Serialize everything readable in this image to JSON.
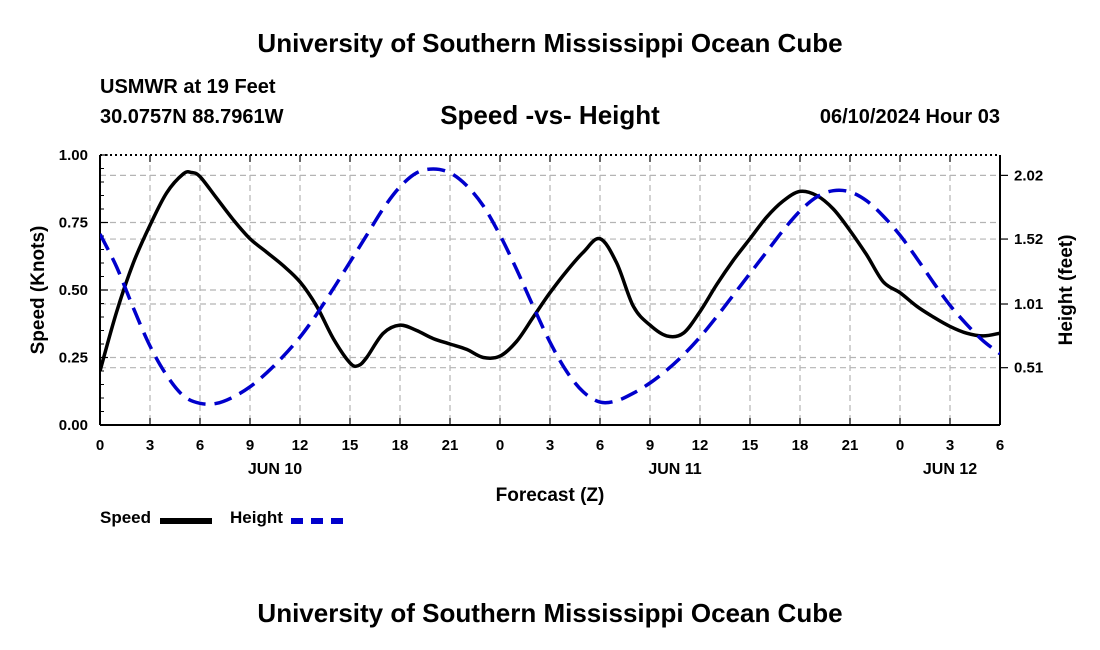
{
  "header": {
    "title": "University of Southern Mississippi Ocean Cube",
    "station": "USMWR at 19 Feet",
    "coordinates": "30.0757N  88.7961W",
    "subtitle": "Speed -vs- Height",
    "datetime": "06/10/2024 Hour 03"
  },
  "footer": {
    "title": "University of Southern Mississippi Ocean Cube"
  },
  "legend": {
    "speed_label": "Speed",
    "height_label": "Height"
  },
  "colors": {
    "speed": "#000000",
    "height": "#0000cc",
    "grid": "#b4b4b4"
  },
  "chart_data": {
    "type": "line",
    "title": "Speed -vs- Height",
    "xlabel": "Forecast (Z)",
    "ylabel": "Speed (Knots)",
    "y2label": "Height (feet)",
    "x_hours_range": [
      0,
      54
    ],
    "x_tick_labels": [
      "0",
      "3",
      "6",
      "9",
      "12",
      "15",
      "18",
      "21",
      "0",
      "3",
      "6",
      "9",
      "12",
      "15",
      "18",
      "21",
      "0",
      "3",
      "6"
    ],
    "date_labels": [
      {
        "hour": 10.5,
        "label": "JUN 10"
      },
      {
        "hour": 34.5,
        "label": "JUN 11"
      },
      {
        "hour": 51,
        "label": "JUN 12"
      }
    ],
    "ylim": [
      0,
      1
    ],
    "y_ticks": [
      0,
      0.25,
      0.5,
      0.75,
      1
    ],
    "y_tick_labels": [
      "0.00",
      "0.25",
      "0.50",
      "0.75",
      "1.00"
    ],
    "y2lim": [
      0.06,
      2.18
    ],
    "y2_ticks": [
      0.51,
      1.01,
      1.52,
      2.02
    ],
    "y2_tick_labels": [
      "0.51",
      "1.01",
      "1.52",
      "2.02"
    ],
    "grid": true,
    "legend_position": "bottom-left",
    "series": [
      {
        "name": "Speed",
        "axis": "left",
        "style": "solid",
        "x": [
          0,
          1,
          2,
          3,
          4,
          5,
          5.5,
          6,
          7,
          8,
          9,
          10,
          11,
          12,
          13,
          14,
          15,
          15.5,
          16,
          17,
          18,
          19,
          20,
          21,
          22,
          23,
          24,
          25,
          26,
          27,
          28,
          29,
          30,
          31,
          32,
          33,
          34,
          35,
          36,
          37,
          38,
          39,
          40,
          41,
          42,
          43,
          44,
          45,
          46,
          47,
          48,
          49,
          50,
          51,
          52,
          53,
          54
        ],
        "y": [
          0.2,
          0.42,
          0.6,
          0.74,
          0.86,
          0.93,
          0.935,
          0.92,
          0.84,
          0.76,
          0.69,
          0.64,
          0.59,
          0.53,
          0.44,
          0.32,
          0.23,
          0.22,
          0.25,
          0.34,
          0.37,
          0.35,
          0.32,
          0.3,
          0.28,
          0.25,
          0.255,
          0.31,
          0.4,
          0.49,
          0.57,
          0.64,
          0.69,
          0.6,
          0.44,
          0.37,
          0.33,
          0.34,
          0.42,
          0.52,
          0.61,
          0.69,
          0.77,
          0.83,
          0.865,
          0.85,
          0.8,
          0.72,
          0.63,
          0.53,
          0.49,
          0.44,
          0.4,
          0.365,
          0.34,
          0.33,
          0.34
        ]
      },
      {
        "name": "Height",
        "axis": "right",
        "style": "dashed",
        "x": [
          0,
          1,
          2,
          3,
          4,
          5,
          6,
          7,
          8,
          9,
          10,
          11,
          12,
          13,
          14,
          15,
          16,
          17,
          18,
          19,
          20,
          21,
          22,
          23,
          24,
          25,
          26,
          27,
          28,
          29,
          30,
          31,
          32,
          33,
          34,
          35,
          36,
          37,
          38,
          39,
          40,
          41,
          42,
          43,
          44,
          45,
          46,
          47,
          48,
          49,
          50,
          51,
          52,
          53,
          54
        ],
        "y": [
          1.56,
          1.3,
          0.98,
          0.68,
          0.45,
          0.29,
          0.23,
          0.23,
          0.28,
          0.36,
          0.47,
          0.6,
          0.75,
          0.93,
          1.13,
          1.34,
          1.55,
          1.76,
          1.93,
          2.04,
          2.07,
          2.04,
          1.94,
          1.78,
          1.55,
          1.28,
          0.99,
          0.71,
          0.48,
          0.32,
          0.24,
          0.25,
          0.31,
          0.39,
          0.49,
          0.61,
          0.75,
          0.91,
          1.08,
          1.25,
          1.42,
          1.59,
          1.74,
          1.85,
          1.9,
          1.89,
          1.82,
          1.7,
          1.55,
          1.37,
          1.18,
          1.0,
          0.85,
          0.72,
          0.62
        ]
      }
    ]
  }
}
